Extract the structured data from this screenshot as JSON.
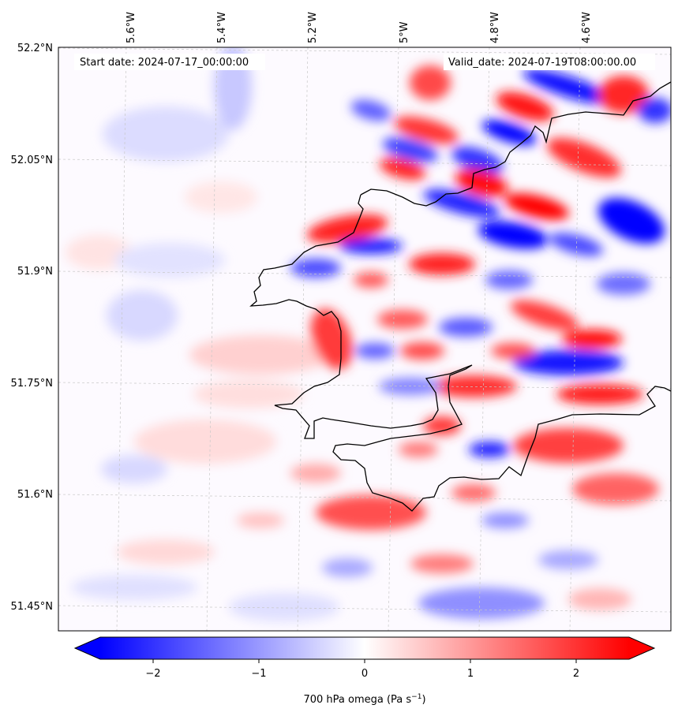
{
  "map": {
    "start_label": "Start date: 2024-07-17_00:00:00",
    "valid_label": "Valid_date: 2024-07-19T08:00:00.00",
    "lon_labels": [
      "5.6°W",
      "5.4°W",
      "5.2°W",
      "5°W",
      "4.8°W",
      "4.6°W"
    ],
    "lat_labels": [
      "52.2°N",
      "52.05°N",
      "51.9°N",
      "51.75°N",
      "51.6°N",
      "51.45°N"
    ],
    "field": "700 hPa omega",
    "colormap": "bwr",
    "gridlines": true,
    "coastline_color": "#000000"
  },
  "colorbar": {
    "ticks": [
      "−2",
      "−1",
      "0",
      "1",
      "2"
    ],
    "tick_values": [
      -2,
      -1,
      0,
      1,
      2
    ],
    "range": [
      -2.75,
      2.75
    ],
    "extend": "both",
    "label": "700 hPa omega (Pa s",
    "label_sup": "−1",
    "label_tail": ")",
    "color_low": "#0000ff",
    "color_mid": "#ffffff",
    "color_high": "#ff0000"
  }
}
